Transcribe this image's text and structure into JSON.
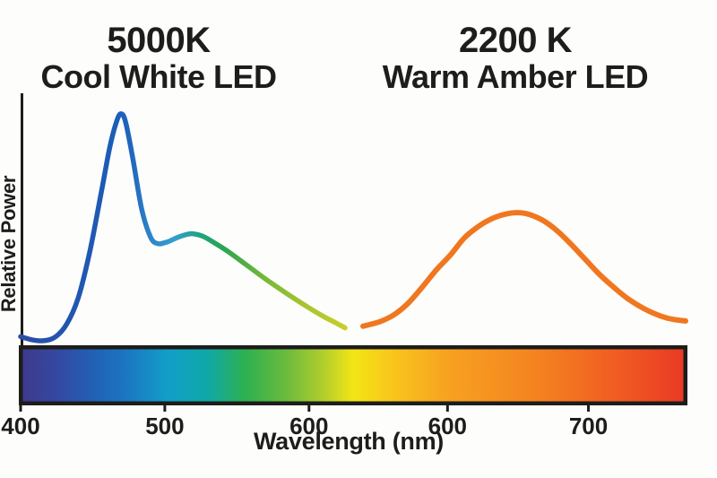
{
  "figure": {
    "background": "#fdfdfc",
    "text_color": "#1d1d1b"
  },
  "y_axis": {
    "label": "Relative Power"
  },
  "x_axis": {
    "label": "Wavelength (nm)"
  },
  "charts": [
    {
      "title_line1": "5000K",
      "title_line2": "Cool White LED"
    },
    {
      "title_line1": "2200 K",
      "title_line2": "Warm Amber LED"
    }
  ],
  "chart_data": {
    "type": "line",
    "xlabel": "Wavelength (nm)",
    "ylabel": "Relative Power",
    "ylim": [
      0,
      1.05
    ],
    "grid": false,
    "legend": "none",
    "series": [
      {
        "name": "5000K Cool White LED",
        "x_range_nm": [
          400,
          625
        ],
        "ticks_nm": [
          400,
          500,
          600
        ],
        "peaks_nm": [
          470,
          520
        ],
        "points": [
          [
            400,
            0.03
          ],
          [
            408,
            0.016
          ],
          [
            416,
            0.012
          ],
          [
            424,
            0.028
          ],
          [
            432,
            0.085
          ],
          [
            440,
            0.2
          ],
          [
            448,
            0.4
          ],
          [
            456,
            0.66
          ],
          [
            462,
            0.86
          ],
          [
            467,
            0.975
          ],
          [
            470,
            1.0
          ],
          [
            473,
            0.96
          ],
          [
            478,
            0.8
          ],
          [
            484,
            0.585
          ],
          [
            490,
            0.465
          ],
          [
            495,
            0.435
          ],
          [
            502,
            0.443
          ],
          [
            510,
            0.465
          ],
          [
            518,
            0.478
          ],
          [
            526,
            0.468
          ],
          [
            534,
            0.44
          ],
          [
            544,
            0.4
          ],
          [
            556,
            0.345
          ],
          [
            570,
            0.28
          ],
          [
            584,
            0.22
          ],
          [
            598,
            0.163
          ],
          [
            610,
            0.118
          ],
          [
            618,
            0.092
          ],
          [
            625,
            0.068
          ]
        ],
        "stroke_gradient": [
          {
            "offset": 0.0,
            "color": "#2a4da6"
          },
          {
            "offset": 0.28,
            "color": "#1c5cb6"
          },
          {
            "offset": 0.34,
            "color": "#1f66bd"
          },
          {
            "offset": 0.4,
            "color": "#2e84c8"
          },
          {
            "offset": 0.475,
            "color": "#32a0cb"
          },
          {
            "offset": 0.55,
            "color": "#1fa284"
          },
          {
            "offset": 0.625,
            "color": "#2ca54e"
          },
          {
            "offset": 0.76,
            "color": "#79b939"
          },
          {
            "offset": 0.88,
            "color": "#a9c42f"
          },
          {
            "offset": 1.0,
            "color": "#c9cd28"
          }
        ]
      },
      {
        "name": "2200K Warm Amber LED",
        "x_range_nm": [
          540,
          769
        ],
        "ticks_nm": [
          600,
          700
        ],
        "peaks_nm": [
          650
        ],
        "stroke_color": "#f0771f",
        "points": [
          [
            540,
            0.075
          ],
          [
            552,
            0.095
          ],
          [
            562,
            0.125
          ],
          [
            572,
            0.175
          ],
          [
            582,
            0.245
          ],
          [
            592,
            0.32
          ],
          [
            602,
            0.385
          ],
          [
            612,
            0.46
          ],
          [
            622,
            0.51
          ],
          [
            632,
            0.545
          ],
          [
            642,
            0.565
          ],
          [
            650,
            0.57
          ],
          [
            658,
            0.562
          ],
          [
            668,
            0.535
          ],
          [
            678,
            0.49
          ],
          [
            688,
            0.43
          ],
          [
            698,
            0.365
          ],
          [
            708,
            0.3
          ],
          [
            718,
            0.245
          ],
          [
            728,
            0.195
          ],
          [
            740,
            0.15
          ],
          [
            752,
            0.118
          ],
          [
            760,
            0.105
          ],
          [
            769,
            0.098
          ]
        ]
      }
    ],
    "spectrum_bar": {
      "border_color": "#1d1d1b",
      "stops": [
        {
          "offset": 0.0,
          "color": "#3e3a8d"
        },
        {
          "offset": 0.05,
          "color": "#3547a0"
        },
        {
          "offset": 0.105,
          "color": "#2260b4"
        },
        {
          "offset": 0.16,
          "color": "#1b78c2"
        },
        {
          "offset": 0.22,
          "color": "#119fc9"
        },
        {
          "offset": 0.28,
          "color": "#10a8a6"
        },
        {
          "offset": 0.335,
          "color": "#2cb052"
        },
        {
          "offset": 0.4,
          "color": "#6cbb3c"
        },
        {
          "offset": 0.455,
          "color": "#b1ce2d"
        },
        {
          "offset": 0.5,
          "color": "#f3e515"
        },
        {
          "offset": 0.565,
          "color": "#f8c31c"
        },
        {
          "offset": 0.645,
          "color": "#f7a120"
        },
        {
          "offset": 0.78,
          "color": "#f48220"
        },
        {
          "offset": 0.9,
          "color": "#f05c22"
        },
        {
          "offset": 1.0,
          "color": "#e93a24"
        }
      ]
    }
  }
}
